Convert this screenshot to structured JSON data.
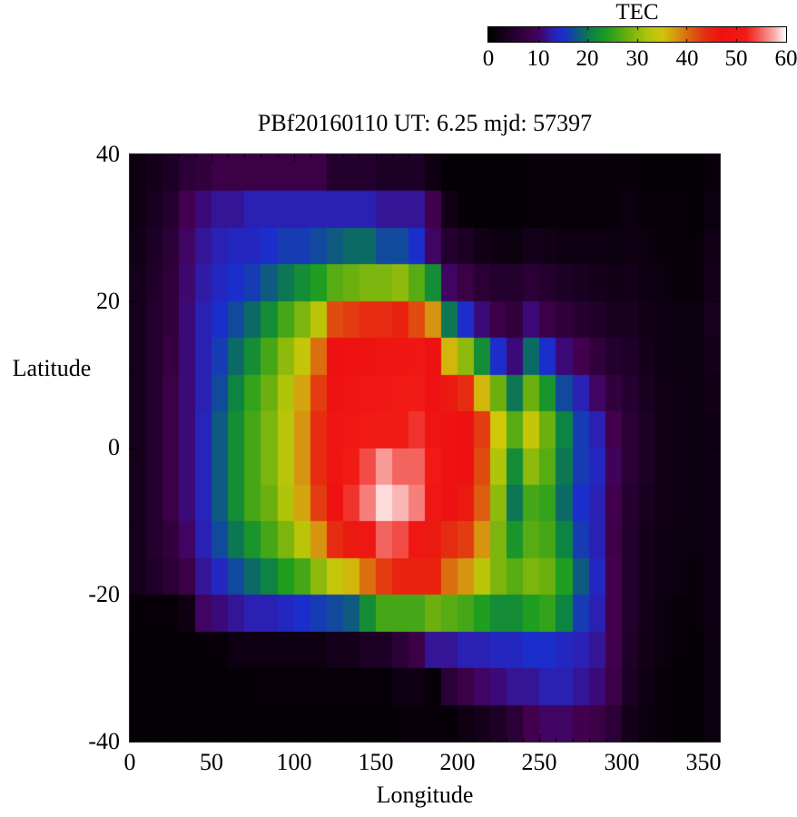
{
  "page": {
    "background": "#ffffff",
    "text_color": "#000000"
  },
  "chart_data": {
    "type": "heatmap",
    "title": "PBf20160110  UT: 6.25  mjd: 57397",
    "xlabel": "Longitude",
    "ylabel": "Latitude",
    "x_range": [
      0,
      360
    ],
    "y_range": [
      -40,
      40
    ],
    "x_tick_labels": [
      "0",
      "50",
      "100",
      "150",
      "200",
      "250",
      "300",
      "350"
    ],
    "y_tick_labels": [
      "40",
      "20",
      "0",
      "-20",
      "-40"
    ],
    "grid_on": false,
    "colorbar": {
      "title": "TEC",
      "range": [
        0,
        60
      ],
      "tick_labels": [
        "0",
        "10",
        "20",
        "30",
        "40",
        "50",
        "60"
      ],
      "position": "top-right horizontal"
    },
    "palette_stops": [
      {
        "v": 0,
        "c": "#000000"
      },
      {
        "v": 5,
        "c": "#23002e"
      },
      {
        "v": 9,
        "c": "#43004e"
      },
      {
        "v": 11,
        "c": "#3c0a78"
      },
      {
        "v": 13,
        "c": "#2a20b4"
      },
      {
        "v": 15,
        "c": "#1b2ecc"
      },
      {
        "v": 17,
        "c": "#114a9c"
      },
      {
        "v": 19,
        "c": "#0c6a66"
      },
      {
        "v": 21,
        "c": "#0e8442"
      },
      {
        "v": 24,
        "c": "#1f9e1f"
      },
      {
        "v": 28,
        "c": "#6bb00f"
      },
      {
        "v": 32,
        "c": "#b0c40a"
      },
      {
        "v": 35,
        "c": "#cfc70a"
      },
      {
        "v": 38,
        "c": "#d79410"
      },
      {
        "v": 41,
        "c": "#dd5c10"
      },
      {
        "v": 44,
        "c": "#e62c10"
      },
      {
        "v": 47,
        "c": "#ee1111"
      },
      {
        "v": 52,
        "c": "#f01b15"
      },
      {
        "v": 55,
        "c": "#f4645f"
      },
      {
        "v": 58,
        "c": "#fab6b4"
      },
      {
        "v": 60,
        "c": "#ffffff"
      }
    ],
    "grid": {
      "cols": 36,
      "rows": 16,
      "lon_start": 0,
      "lon_step": 10,
      "lat_start": 40,
      "lat_step": -5,
      "note": "TEC values; rows top (lat +40) to bottom (lat -40), cols lon 0 to 360",
      "values": [
        [
          2,
          3,
          4,
          6,
          7,
          8,
          8,
          8,
          8,
          8,
          8,
          8,
          5,
          5,
          5,
          4,
          4,
          4,
          2,
          0.5,
          0.5,
          0.5,
          0.5,
          0.5,
          1,
          1,
          1,
          1,
          1,
          1,
          1,
          0.5,
          0.5,
          0.5,
          0.5,
          1
        ],
        [
          2,
          3.5,
          5,
          9,
          11,
          12,
          12,
          13,
          13,
          13,
          13,
          13,
          13,
          13,
          13,
          12,
          12,
          12,
          9,
          2.5,
          1,
          0.5,
          0.5,
          0.5,
          1,
          1,
          1,
          1,
          1,
          1,
          1.5,
          1,
          1,
          1,
          0.5,
          1.5
        ],
        [
          2.5,
          4,
          6,
          10,
          12,
          13,
          14,
          14,
          15,
          16,
          16,
          17,
          18,
          19,
          19,
          17,
          17,
          15,
          10,
          5,
          4,
          2.5,
          2,
          1.5,
          3,
          2.5,
          2,
          2,
          2,
          1.5,
          2,
          1.5,
          1,
          1,
          1,
          2.5
        ],
        [
          3,
          4.5,
          6.5,
          10.5,
          12.5,
          14,
          15,
          16,
          18,
          20,
          22,
          24,
          27,
          28,
          29,
          29,
          30,
          27,
          22,
          10,
          8,
          6,
          5,
          5,
          6,
          5,
          4,
          3.5,
          3,
          2.5,
          3,
          2,
          1.5,
          1,
          1,
          3
        ],
        [
          3,
          5,
          7,
          11,
          13,
          15,
          17,
          19,
          22,
          26,
          29,
          33,
          42,
          43,
          44,
          44,
          45,
          42,
          38,
          20,
          15,
          11,
          8,
          7,
          11,
          8,
          6.5,
          5.5,
          4.5,
          3.5,
          3.5,
          2.5,
          2,
          1.5,
          1.5,
          3.5
        ],
        [
          3,
          5,
          7.5,
          11,
          13,
          16,
          19,
          22,
          26,
          30,
          34,
          40,
          47,
          48,
          48,
          49,
          49,
          50,
          47,
          36,
          30,
          22,
          15,
          11,
          19,
          15,
          11,
          9,
          7,
          5,
          4.5,
          3,
          2,
          1.5,
          1.5,
          3
        ],
        [
          3,
          5,
          8,
          11,
          13,
          17,
          21,
          25,
          28,
          32,
          37,
          43,
          48,
          49,
          50,
          50,
          51,
          52,
          48,
          46,
          44,
          36,
          28,
          20,
          28,
          23,
          17,
          13,
          10,
          7,
          5.5,
          3.5,
          2.5,
          2,
          1.5,
          2.5
        ],
        [
          3,
          5,
          8,
          11,
          13.5,
          18,
          22,
          26,
          29,
          33,
          38,
          44,
          49,
          50,
          51,
          52,
          52,
          53,
          49,
          48,
          47,
          43,
          35,
          27,
          34,
          28,
          21,
          16,
          13,
          9,
          6,
          4,
          2.5,
          2,
          1.5,
          2
        ],
        [
          3,
          5,
          8,
          11,
          13.5,
          18,
          22,
          26,
          29,
          33,
          38,
          44,
          49,
          52,
          54,
          57,
          55,
          55,
          51,
          48,
          47,
          42,
          32,
          22,
          30,
          27,
          20,
          16,
          14,
          9.5,
          6,
          4,
          2.5,
          2,
          1.5,
          2
        ],
        [
          3,
          5,
          8,
          11,
          13.5,
          18,
          22,
          26,
          28,
          32,
          37,
          43,
          48,
          53,
          56,
          59,
          58,
          56,
          50,
          47,
          46,
          41,
          30,
          20,
          26,
          25,
          19,
          15,
          13,
          9,
          5.5,
          3.5,
          2.5,
          2,
          1.5,
          2
        ],
        [
          3,
          5,
          7,
          10,
          13,
          17,
          20,
          23,
          26,
          29,
          33,
          38,
          44,
          46,
          50,
          55,
          54,
          50,
          46,
          44,
          43,
          38,
          29,
          23,
          27,
          26,
          21,
          16,
          13,
          8.5,
          5,
          3,
          2,
          1.5,
          1.5,
          2
        ],
        [
          3,
          4.5,
          6,
          8,
          12,
          14,
          17,
          19,
          21,
          24,
          26,
          30,
          34,
          36,
          40,
          43,
          45,
          45,
          45,
          40,
          38,
          33,
          29,
          27,
          29,
          28,
          24,
          18,
          14,
          9,
          5,
          3,
          2,
          1.5,
          1,
          2
        ],
        [
          1,
          1,
          1,
          2,
          10,
          11,
          12,
          13,
          13,
          14,
          15,
          16,
          17,
          18,
          22,
          26,
          26,
          26,
          28,
          27,
          26,
          24,
          22,
          22,
          24,
          25,
          21,
          16,
          13,
          9,
          5,
          3,
          1.5,
          1,
          1,
          2
        ],
        [
          0.5,
          0.5,
          0.5,
          0.5,
          1,
          1,
          2,
          2,
          2,
          2,
          2,
          2,
          3,
          3,
          4,
          4,
          6,
          8,
          12,
          12,
          13,
          13,
          14,
          14,
          15,
          15,
          14,
          13,
          12,
          9,
          4.5,
          2.5,
          1.5,
          1,
          0.5,
          1.5
        ],
        [
          0.5,
          0.5,
          0.5,
          0.5,
          0.5,
          0.5,
          0.5,
          1,
          1,
          1,
          1,
          1,
          1,
          1,
          1,
          1,
          2,
          2,
          1,
          6,
          8,
          10,
          11,
          12,
          12,
          13,
          13,
          12,
          11,
          8,
          4,
          2,
          1,
          0.5,
          0.5,
          1.5
        ],
        [
          0.5,
          0.5,
          0.5,
          0.5,
          0.5,
          0.5,
          0.5,
          0.5,
          0.5,
          0.5,
          0.5,
          0.5,
          0.5,
          0.5,
          0.5,
          0.5,
          1,
          1,
          1,
          1,
          2,
          3,
          4,
          6,
          9,
          10,
          10,
          9,
          8,
          6,
          3,
          1.5,
          1,
          0.5,
          0.5,
          1.5
        ]
      ]
    }
  }
}
